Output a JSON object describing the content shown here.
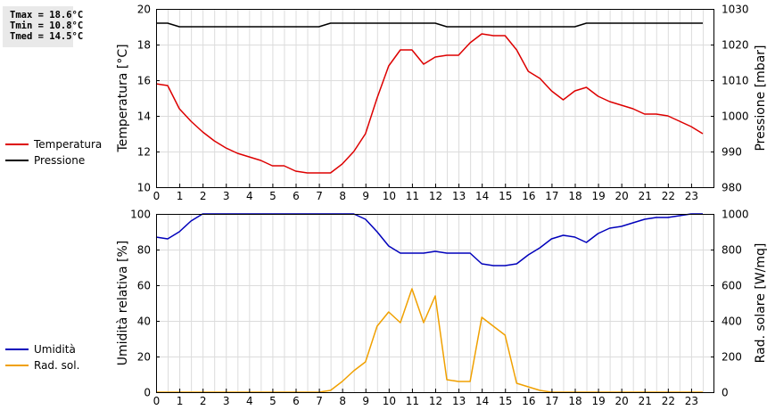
{
  "stats": {
    "tmax": "Tmax = 18.6°C",
    "tmin": "Tmin = 10.8°C",
    "tmed": "Tmed = 14.5°C"
  },
  "legend_top": [
    {
      "label": "Temperatura",
      "color": "#dd0000"
    },
    {
      "label": "Pressione",
      "color": "#000000"
    }
  ],
  "legend_bottom": [
    {
      "label": "Umidità",
      "color": "#0000bb"
    },
    {
      "label": "Rad. sol.",
      "color": "#f0a000"
    }
  ],
  "chart_data": [
    {
      "type": "line",
      "ylabel": "Temperatura [°C]",
      "y2label": "Pressione [mbar]",
      "xlim": [
        0,
        24
      ],
      "ylim": [
        10,
        20
      ],
      "y2lim": [
        980,
        1030
      ],
      "xticks": [
        "0",
        "1",
        "2",
        "3",
        "4",
        "5",
        "6",
        "7",
        "8",
        "9",
        "10",
        "11",
        "12",
        "13",
        "14",
        "15",
        "16",
        "17",
        "18",
        "19",
        "20",
        "21",
        "22",
        "23"
      ],
      "yticks": [
        "10",
        "12",
        "14",
        "16",
        "18",
        "20"
      ],
      "y2ticks": [
        "980",
        "990",
        "1000",
        "1010",
        "1020",
        "1030"
      ],
      "grid": true,
      "series": [
        {
          "name": "Temperatura",
          "axis": "left",
          "color": "#dd0000",
          "x": [
            0,
            0.5,
            1,
            1.5,
            2,
            2.5,
            3,
            3.5,
            4,
            4.5,
            5,
            5.5,
            6,
            6.5,
            7,
            7.5,
            8,
            8.5,
            9,
            9.5,
            10,
            10.5,
            11,
            11.5,
            12,
            12.5,
            13,
            13.5,
            14,
            14.5,
            15,
            15.5,
            16,
            16.5,
            17,
            17.5,
            18,
            18.5,
            19,
            19.5,
            20,
            20.5,
            21,
            21.5,
            22,
            22.5,
            23,
            23.5
          ],
          "y": [
            15.8,
            15.7,
            14.4,
            13.7,
            13.1,
            12.6,
            12.2,
            11.9,
            11.7,
            11.5,
            11.2,
            11.2,
            10.9,
            10.8,
            10.8,
            10.8,
            11.3,
            12.0,
            13.0,
            15.0,
            16.8,
            17.7,
            17.7,
            16.9,
            17.3,
            17.4,
            17.4,
            18.1,
            18.6,
            18.5,
            18.5,
            17.7,
            16.5,
            16.1,
            15.4,
            14.9,
            15.4,
            15.6,
            15.1,
            14.8,
            14.6,
            14.4,
            14.1,
            14.1,
            14.0,
            13.7,
            13.4,
            13.0
          ]
        },
        {
          "name": "Pressione",
          "axis": "right",
          "color": "#000000",
          "x": [
            0,
            0.5,
            1,
            1.5,
            2,
            2.5,
            3,
            3.5,
            4,
            4.5,
            5,
            5.5,
            6,
            6.5,
            7,
            7.5,
            8,
            8.5,
            9,
            9.5,
            10,
            10.5,
            11,
            11.5,
            12,
            12.5,
            13,
            13.5,
            14,
            14.5,
            15,
            15.5,
            16,
            16.5,
            17,
            17.5,
            18,
            18.5,
            19,
            19.5,
            20,
            20.5,
            21,
            21.5,
            22,
            22.5,
            23,
            23.5
          ],
          "y": [
            1026,
            1026,
            1025,
            1025,
            1025,
            1025,
            1025,
            1025,
            1025,
            1025,
            1025,
            1025,
            1025,
            1025,
            1025,
            1026,
            1026,
            1026,
            1026,
            1026,
            1026,
            1026,
            1026,
            1026,
            1026,
            1025,
            1025,
            1025,
            1025,
            1025,
            1025,
            1025,
            1025,
            1025,
            1025,
            1025,
            1025,
            1026,
            1026,
            1026,
            1026,
            1026,
            1026,
            1026,
            1026,
            1026,
            1026,
            1026
          ]
        }
      ]
    },
    {
      "type": "line",
      "ylabel": "Umidità relativa [%]",
      "y2label": "Rad. solare [W/mq]",
      "xlim": [
        0,
        24
      ],
      "ylim": [
        0,
        100
      ],
      "y2lim": [
        0,
        1000
      ],
      "xticks": [
        "0",
        "1",
        "2",
        "3",
        "4",
        "5",
        "6",
        "7",
        "8",
        "9",
        "10",
        "11",
        "12",
        "13",
        "14",
        "15",
        "16",
        "17",
        "18",
        "19",
        "20",
        "21",
        "22",
        "23"
      ],
      "yticks": [
        "0",
        "20",
        "40",
        "60",
        "80",
        "100"
      ],
      "y2ticks": [
        "0",
        "200",
        "400",
        "600",
        "800",
        "1000"
      ],
      "grid": true,
      "series": [
        {
          "name": "Umidità",
          "axis": "left",
          "color": "#0000bb",
          "x": [
            0,
            0.5,
            1,
            1.5,
            2,
            2.5,
            3,
            3.5,
            4,
            4.5,
            5,
            5.5,
            6,
            6.5,
            7,
            7.5,
            8,
            8.5,
            9,
            9.5,
            10,
            10.5,
            11,
            11.5,
            12,
            12.5,
            13,
            13.5,
            14,
            14.5,
            15,
            15.5,
            16,
            16.5,
            17,
            17.5,
            18,
            18.5,
            19,
            19.5,
            20,
            20.5,
            21,
            21.5,
            22,
            22.5,
            23,
            23.5
          ],
          "y": [
            87,
            86,
            90,
            96,
            100,
            100,
            100,
            100,
            100,
            100,
            100,
            100,
            100,
            100,
            100,
            100,
            100,
            100,
            97,
            90,
            82,
            78,
            78,
            78,
            79,
            78,
            78,
            78,
            72,
            71,
            71,
            72,
            77,
            81,
            86,
            88,
            87,
            84,
            89,
            92,
            93,
            95,
            97,
            98,
            98,
            99,
            100,
            100
          ]
        },
        {
          "name": "Rad. sol.",
          "axis": "right",
          "color": "#f0a000",
          "x": [
            0,
            0.5,
            1,
            1.5,
            2,
            2.5,
            3,
            3.5,
            4,
            4.5,
            5,
            5.5,
            6,
            6.5,
            7,
            7.5,
            8,
            8.5,
            9,
            9.5,
            10,
            10.5,
            11,
            11.5,
            12,
            12.5,
            13,
            13.5,
            14,
            14.5,
            15,
            15.5,
            16,
            16.5,
            17,
            17.5,
            18,
            18.5,
            19,
            19.5,
            20,
            20.5,
            21,
            21.5,
            22,
            22.5,
            23,
            23.5
          ],
          "y": [
            0,
            0,
            0,
            0,
            0,
            0,
            0,
            0,
            0,
            0,
            0,
            0,
            0,
            0,
            0,
            10,
            60,
            120,
            170,
            370,
            450,
            390,
            580,
            390,
            540,
            70,
            60,
            60,
            420,
            370,
            320,
            50,
            30,
            10,
            0,
            0,
            0,
            0,
            0,
            0,
            0,
            0,
            0,
            0,
            0,
            0,
            0,
            0
          ]
        }
      ]
    }
  ]
}
